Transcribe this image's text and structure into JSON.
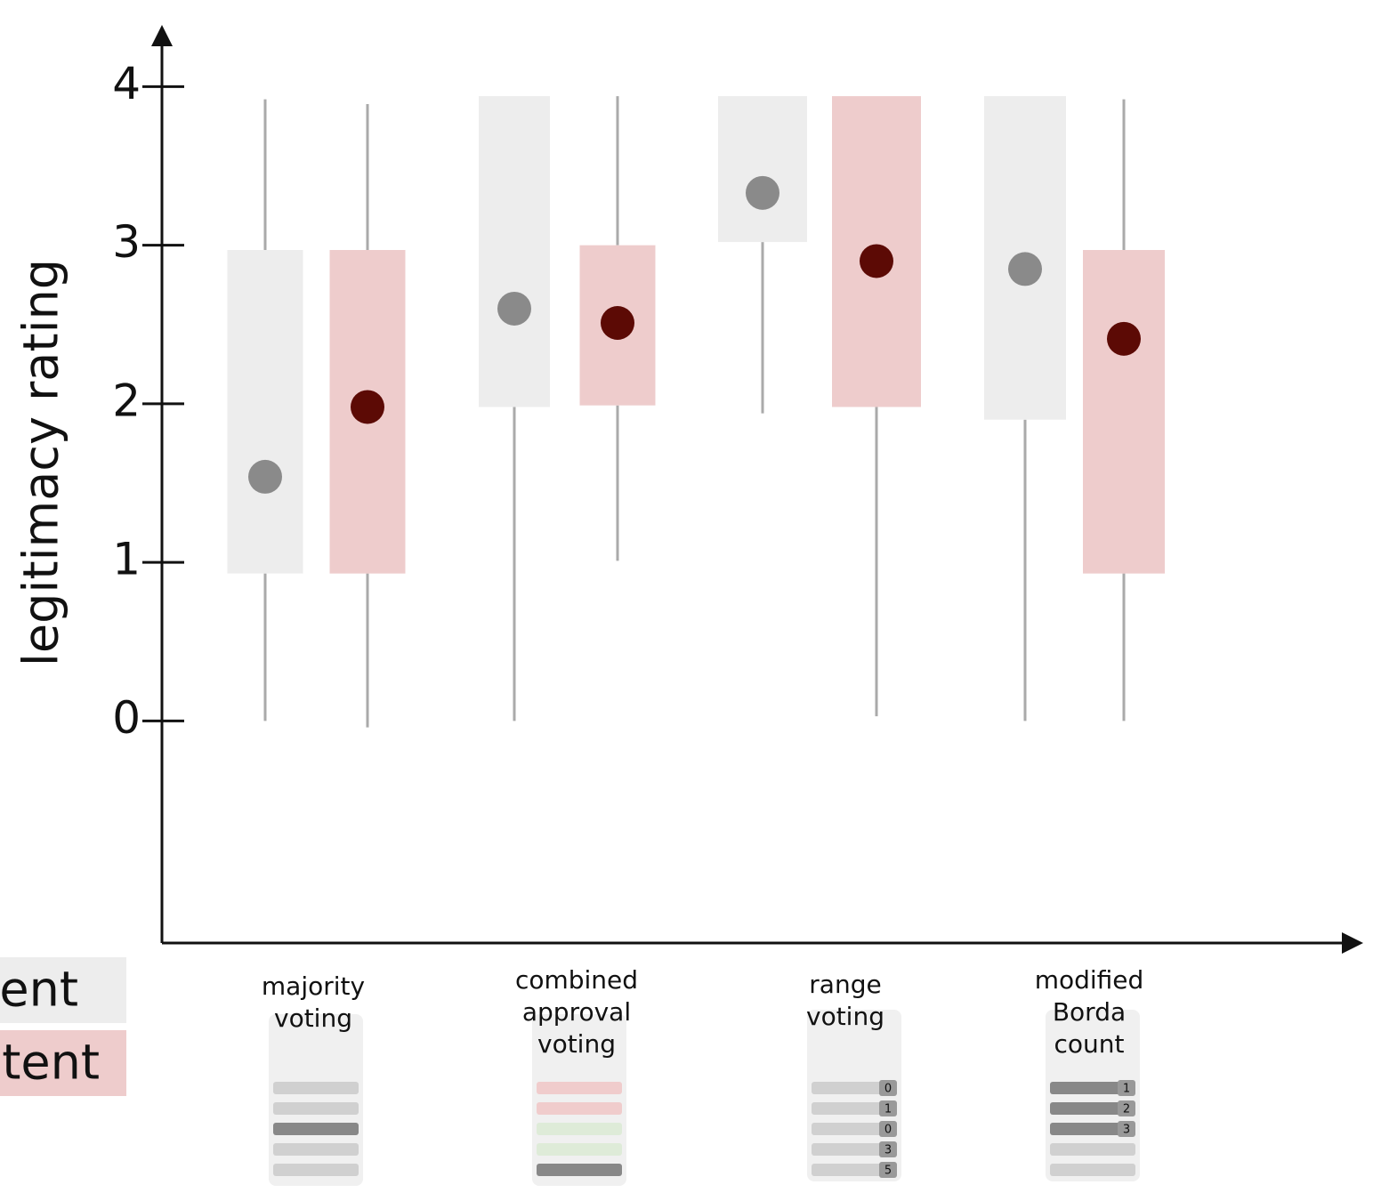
{
  "chart_data": {
    "type": "box",
    "y_label": "legitimacy rating",
    "categories": [
      [
        "majority",
        "voting"
      ],
      [
        "combined",
        "approval",
        "voting"
      ],
      [
        "range",
        "voting"
      ],
      [
        "modified",
        "Borda",
        "count"
      ]
    ],
    "category_icon_numbers": [
      [],
      [],
      [
        0,
        1,
        0,
        3,
        5
      ],
      [
        1,
        2,
        3
      ]
    ],
    "ylim": [
      -1.4,
      4.35
    ],
    "yticks": [
      0,
      1,
      2,
      3,
      4
    ],
    "series": [
      {
        "name": "ent",
        "color": "#ededed",
        "dot_color": "#8a8a8a",
        "low": [
          0,
          0,
          1.94,
          0
        ],
        "q1": [
          0.93,
          1.98,
          3.02,
          1.9
        ],
        "mean": [
          1.54,
          2.6,
          3.33,
          2.85
        ],
        "q3": [
          2.97,
          3.94,
          3.94,
          3.94
        ],
        "high": [
          3.92,
          3.94,
          3.94,
          3.94
        ]
      },
      {
        "name": "tent",
        "color": "#eecccc",
        "dot_color": "#5c0a05",
        "low": [
          -0.04,
          1.01,
          0.03,
          0
        ],
        "q1": [
          0.93,
          1.99,
          1.98,
          0.93
        ],
        "mean": [
          1.98,
          2.51,
          2.9,
          2.41
        ],
        "q3": [
          2.97,
          3.0,
          3.94,
          2.97
        ],
        "high": [
          3.89,
          3.94,
          3.94,
          3.92
        ]
      }
    ]
  }
}
